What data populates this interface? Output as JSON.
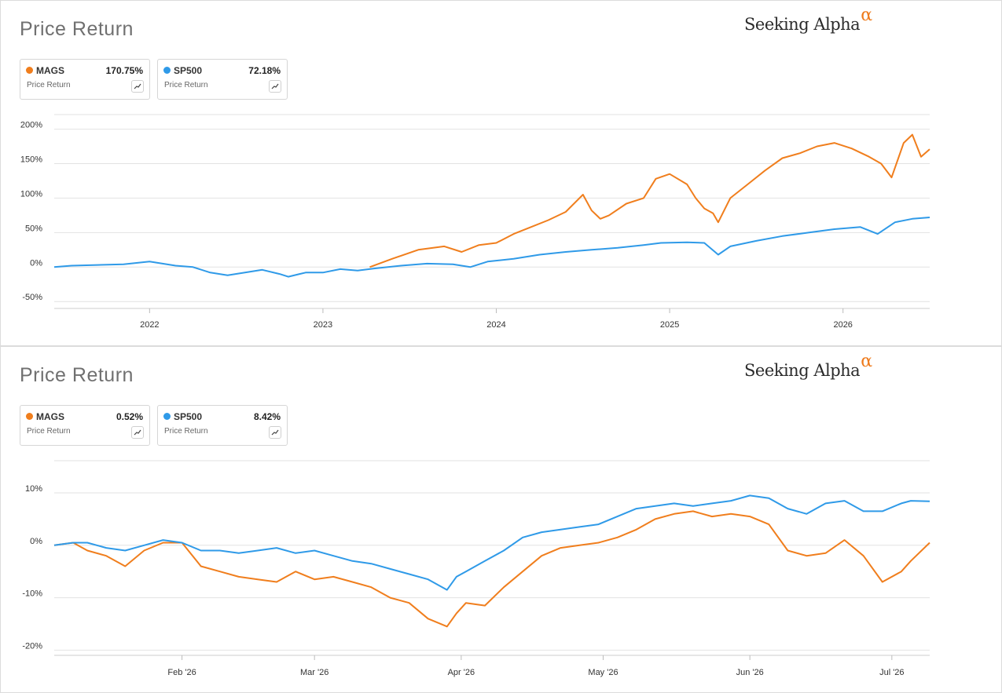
{
  "colors": {
    "mags": "#f07e1d",
    "sp500": "#2f9ae8",
    "grid": "#e2e2e2",
    "axis_text": "#333333"
  },
  "charts": [
    {
      "title": "Price Return",
      "brand": "Seeking Alpha",
      "brand_symbol": "α",
      "legend": [
        {
          "symbol": "MAGS",
          "value": "170.75%",
          "subtitle": "Price Return",
          "icon": "sparkline-icon"
        },
        {
          "symbol": "SP500",
          "value": "72.18%",
          "subtitle": "Price Return",
          "icon": "sparkline-icon"
        }
      ]
    },
    {
      "title": "Price Return",
      "brand": "Seeking Alpha",
      "brand_symbol": "α",
      "legend": [
        {
          "symbol": "MAGS",
          "value": "0.52%",
          "subtitle": "Price Return",
          "icon": "sparkline-icon"
        },
        {
          "symbol": "SP500",
          "value": "8.42%",
          "subtitle": "Price Return",
          "icon": "sparkline-icon"
        }
      ]
    }
  ],
  "chart_data": [
    {
      "type": "line",
      "x_unit": "year",
      "xlim": [
        2021.45,
        2026.5
      ],
      "ylim": [
        -60,
        220
      ],
      "y_ticks": [
        -50,
        0,
        50,
        100,
        150,
        200
      ],
      "y_tick_labels": [
        "-50%",
        "0%",
        "50%",
        "100%",
        "150%",
        "200%"
      ],
      "x_ticks": [
        2022,
        2023,
        2024,
        2025,
        2026
      ],
      "x_tick_labels": [
        "2022",
        "2023",
        "2024",
        "2025",
        "2026"
      ],
      "grid": true,
      "series": [
        {
          "name": "MAGS",
          "x": [
            2023.27,
            2023.4,
            2023.55,
            2023.7,
            2023.8,
            2023.9,
            2024.0,
            2024.1,
            2024.2,
            2024.3,
            2024.4,
            2024.5,
            2024.55,
            2024.6,
            2024.65,
            2024.75,
            2024.85,
            2024.92,
            2025.0,
            2025.1,
            2025.15,
            2025.2,
            2025.25,
            2025.28,
            2025.35,
            2025.45,
            2025.55,
            2025.65,
            2025.75,
            2025.85,
            2025.95,
            2026.05,
            2026.15,
            2026.22,
            2026.28,
            2026.35,
            2026.4,
            2026.45,
            2026.5
          ],
          "values": [
            0,
            12,
            25,
            30,
            22,
            32,
            35,
            48,
            58,
            68,
            80,
            105,
            82,
            70,
            75,
            92,
            100,
            128,
            135,
            120,
            100,
            85,
            78,
            65,
            100,
            120,
            140,
            158,
            165,
            175,
            180,
            172,
            160,
            150,
            130,
            180,
            192,
            160,
            171
          ]
        },
        {
          "name": "SP500",
          "x": [
            2021.45,
            2021.55,
            2021.7,
            2021.85,
            2022.0,
            2022.15,
            2022.25,
            2022.35,
            2022.45,
            2022.55,
            2022.65,
            2022.75,
            2022.8,
            2022.9,
            2023.0,
            2023.1,
            2023.2,
            2023.3,
            2023.45,
            2023.6,
            2023.75,
            2023.85,
            2023.95,
            2024.1,
            2024.25,
            2024.4,
            2024.55,
            2024.7,
            2024.85,
            2024.95,
            2025.1,
            2025.2,
            2025.28,
            2025.35,
            2025.5,
            2025.65,
            2025.8,
            2025.95,
            2026.1,
            2026.2,
            2026.3,
            2026.4,
            2026.5
          ],
          "values": [
            0,
            2,
            3,
            4,
            8,
            2,
            0,
            -8,
            -12,
            -8,
            -4,
            -10,
            -14,
            -8,
            -8,
            -3,
            -5,
            -2,
            2,
            5,
            4,
            0,
            8,
            12,
            18,
            22,
            25,
            28,
            32,
            35,
            36,
            35,
            18,
            30,
            38,
            45,
            50,
            55,
            58,
            48,
            65,
            70,
            72
          ]
        }
      ]
    },
    {
      "type": "line",
      "x_unit": "day of 2026",
      "xlim": [
        5,
        190
      ],
      "ylim": [
        -21,
        16
      ],
      "y_ticks": [
        -20,
        -10,
        0,
        10
      ],
      "y_tick_labels": [
        "-20%",
        "-10%",
        "0%",
        "10%"
      ],
      "x_ticks": [
        32,
        60,
        91,
        121,
        152,
        182
      ],
      "x_tick_labels": [
        "Feb '26",
        "Mar '26",
        "Apr '26",
        "May '26",
        "Jun '26",
        "Jul '26"
      ],
      "grid": true,
      "series": [
        {
          "name": "MAGS",
          "x": [
            5,
            9,
            12,
            16,
            20,
            24,
            28,
            32,
            36,
            40,
            44,
            48,
            52,
            56,
            60,
            64,
            68,
            72,
            76,
            80,
            84,
            88,
            90,
            92,
            96,
            100,
            104,
            108,
            112,
            116,
            120,
            124,
            128,
            132,
            136,
            140,
            144,
            148,
            152,
            156,
            160,
            164,
            168,
            172,
            176,
            180,
            184,
            186,
            190
          ],
          "values": [
            0,
            0.5,
            -1,
            -2,
            -4,
            -1,
            0.5,
            0.5,
            -4,
            -5,
            -6,
            -6.5,
            -7,
            -5,
            -6.5,
            -6,
            -7,
            -8,
            -10,
            -11,
            -14,
            -15.5,
            -13,
            -11,
            -11.5,
            -8,
            -5,
            -2,
            -0.5,
            0,
            0.5,
            1.5,
            3,
            5,
            6,
            6.5,
            5.5,
            6,
            5.5,
            4,
            -1,
            -2,
            -1.5,
            1,
            -2,
            -7,
            -5,
            -3,
            0.5
          ]
        },
        {
          "name": "SP500",
          "x": [
            5,
            9,
            12,
            16,
            20,
            24,
            28,
            32,
            36,
            40,
            44,
            48,
            52,
            56,
            60,
            64,
            68,
            72,
            76,
            80,
            84,
            88,
            90,
            92,
            96,
            100,
            104,
            108,
            112,
            116,
            120,
            124,
            128,
            132,
            136,
            140,
            144,
            148,
            152,
            156,
            160,
            164,
            168,
            172,
            176,
            180,
            184,
            186,
            190
          ],
          "values": [
            0,
            0.5,
            0.5,
            -0.5,
            -1,
            0,
            1,
            0.5,
            -1,
            -1,
            -1.5,
            -1,
            -0.5,
            -1.5,
            -1,
            -2,
            -3,
            -3.5,
            -4.5,
            -5.5,
            -6.5,
            -8.5,
            -6,
            -5,
            -3,
            -1,
            1.5,
            2.5,
            3,
            3.5,
            4,
            5.5,
            7,
            7.5,
            8,
            7.5,
            8,
            8.5,
            9.5,
            9,
            7,
            6,
            8,
            8.5,
            6.5,
            6.5,
            8,
            8.5,
            8.4
          ]
        }
      ]
    }
  ]
}
